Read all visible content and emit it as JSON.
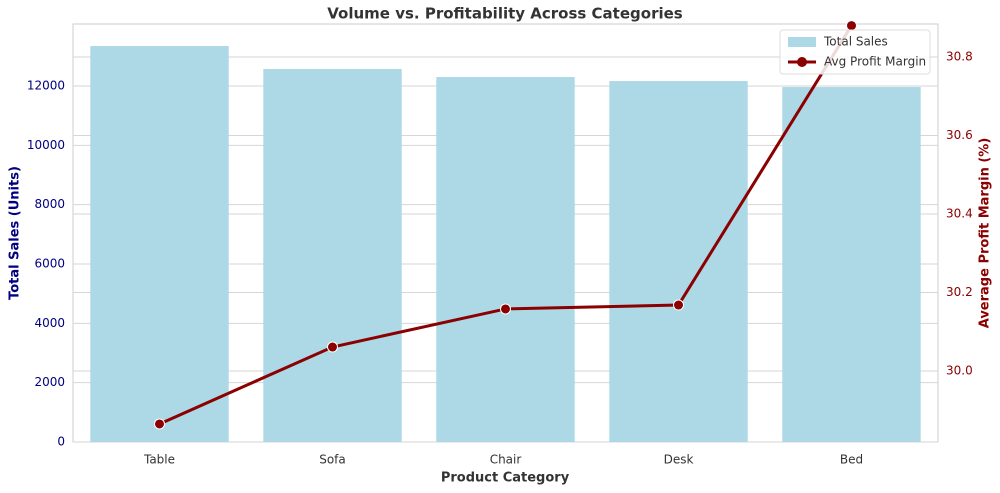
{
  "chart_data": {
    "type": "bar",
    "title": "Volume vs. Profitability Across Categories",
    "x_label": "Product Category",
    "y_label": "Total Sales (Units)",
    "y2_label": "Average Profit Margin (%)",
    "categories": [
      "Table",
      "Sofa",
      "Chair",
      "Desk",
      "Bed"
    ],
    "series": [
      {
        "name": "Total Sales",
        "type": "bar",
        "color": "#add8e6",
        "values": [
          13347,
          12572,
          12302,
          12167,
          11965
        ]
      },
      {
        "name": "Avg Profit Margin",
        "type": "line",
        "axis": "y2",
        "color": "#8b0000",
        "values": [
          29.865,
          30.061,
          30.158,
          30.168,
          30.88
        ]
      }
    ],
    "ylim": [
      0,
      14090
    ],
    "yticks": [
      0,
      2000,
      4000,
      6000,
      8000,
      10000,
      12000
    ],
    "y2lim": [
      29.819,
      30.884
    ],
    "y2ticks": [
      {
        "value": 30,
        "label": "30.0"
      },
      30.2,
      30.4,
      30.6,
      30.8
    ],
    "grid": true,
    "legend": "upper right"
  }
}
